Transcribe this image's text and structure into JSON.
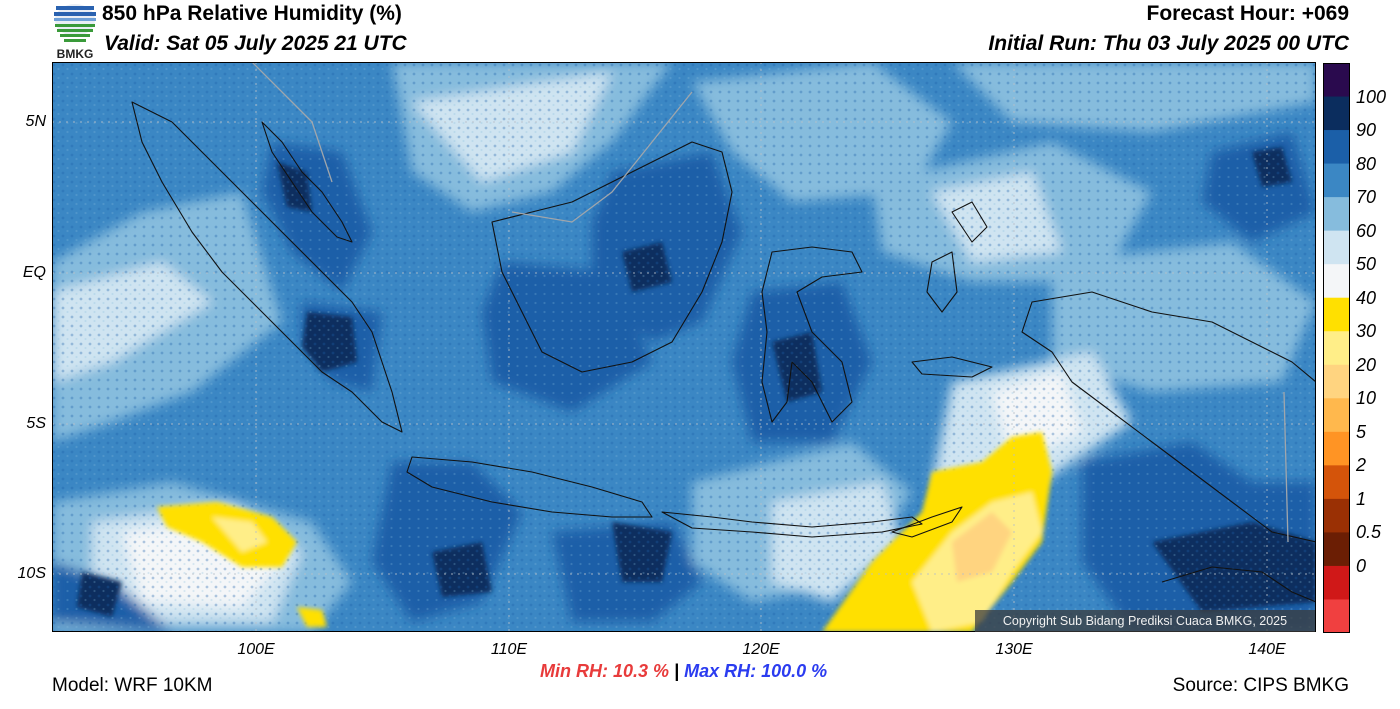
{
  "header": {
    "title": "850 hPa Relative Humidity (%)",
    "valid": "Valid: Sat 05 July 2025 21 UTC",
    "forecast_hour": "Forecast Hour: +069",
    "initial_run": "Initial Run: Thu 03 July 2025 00 UTC"
  },
  "logo": {
    "text": "BMKG"
  },
  "axes": {
    "lat_labels": [
      "5N",
      "EQ",
      "5S",
      "10S"
    ],
    "lon_labels": [
      "100E",
      "110E",
      "120E",
      "130E",
      "140E"
    ]
  },
  "colorbar": {
    "labels": [
      "100",
      "90",
      "80",
      "70",
      "60",
      "50",
      "40",
      "30",
      "20",
      "10",
      "5",
      "2",
      "1",
      "0.5",
      "0"
    ],
    "colors": [
      "#2a0a4e",
      "#0b2d5e",
      "#1b5fa8",
      "#3b87c4",
      "#86bcdd",
      "#cfe4f1",
      "#f4f6f8",
      "#ffe000",
      "#ffee88",
      "#ffd480",
      "#ffb84d",
      "#ff9424",
      "#d4540a",
      "#9a3004",
      "#6b1e04",
      "#d01818",
      "#f04040"
    ]
  },
  "footer": {
    "model": "Model: WRF 10KM",
    "source": "Source: CIPS BMKG",
    "min_rh": "Min RH:  10.3 %",
    "separator": " | ",
    "max_rh": "Max RH: 100.0 %",
    "copyright": "Copyright Sub Bidang Prediksi Cuaca BMKG, 2025"
  }
}
